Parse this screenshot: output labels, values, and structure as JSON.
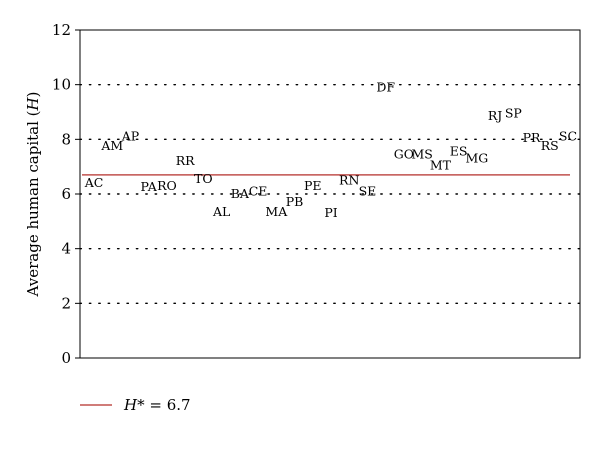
{
  "chart_data": {
    "type": "scatter",
    "ylabel": "Average human capital (H)",
    "ylabel_parts": {
      "before": "Average human capital (",
      "italic": "H",
      "after": ")"
    },
    "ylim": [
      0,
      12
    ],
    "yticks": [
      "0",
      "2",
      "4",
      "6",
      "8",
      "10",
      "12"
    ],
    "grid": "horizontal-dotted",
    "points": [
      {
        "label": "AC",
        "y": 6.4
      },
      {
        "label": "AM",
        "y": 7.75
      },
      {
        "label": "AP",
        "y": 8.1
      },
      {
        "label": "PA",
        "y": 6.25
      },
      {
        "label": "RO",
        "y": 6.3
      },
      {
        "label": "RR",
        "y": 7.2
      },
      {
        "label": "TO",
        "y": 6.55
      },
      {
        "label": "AL",
        "y": 5.35
      },
      {
        "label": "BA",
        "y": 6.0
      },
      {
        "label": "CE",
        "y": 6.1
      },
      {
        "label": "MA",
        "y": 5.35
      },
      {
        "label": "PB",
        "y": 5.7
      },
      {
        "label": "PE",
        "y": 6.3
      },
      {
        "label": "PI",
        "y": 5.3
      },
      {
        "label": "RN",
        "y": 6.5
      },
      {
        "label": "SE",
        "y": 6.1
      },
      {
        "label": "DF",
        "y": 9.9
      },
      {
        "label": "GO",
        "y": 7.45
      },
      {
        "label": "MS",
        "y": 7.45
      },
      {
        "label": "MT",
        "y": 7.05
      },
      {
        "label": "ES",
        "y": 7.55
      },
      {
        "label": "MG",
        "y": 7.3
      },
      {
        "label": "RJ",
        "y": 8.85
      },
      {
        "label": "SP",
        "y": 8.95
      },
      {
        "label": "PR",
        "y": 8.05
      },
      {
        "label": "RS",
        "y": 7.75
      },
      {
        "label": "SC",
        "y": 8.1
      }
    ],
    "reference_line": {
      "y": 6.7,
      "color": "#c0504d"
    },
    "legend": {
      "placement": "bottom-left",
      "symbol": "H",
      "suffix": "* = 6.7"
    }
  }
}
